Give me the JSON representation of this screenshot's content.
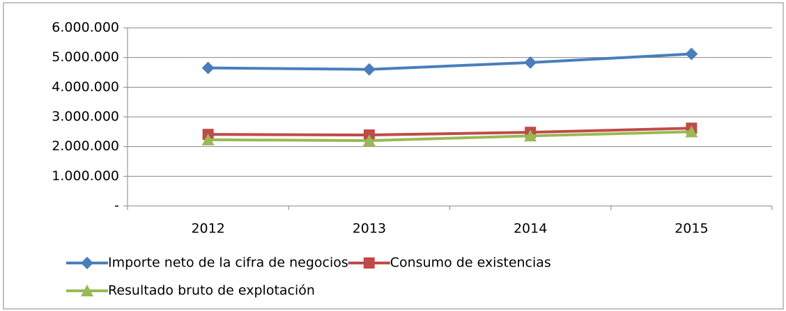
{
  "chart_data": {
    "type": "line",
    "categories": [
      "2012",
      "2013",
      "2014",
      "2015"
    ],
    "series": [
      {
        "name": "Importe neto de la cifra de negocios",
        "color": "#4a7ebb",
        "marker": "diamond",
        "values": [
          4650000,
          4600000,
          4830000,
          5120000
        ]
      },
      {
        "name": "Consumo de existencias",
        "color": "#be4b48",
        "marker": "square",
        "values": [
          2410000,
          2390000,
          2480000,
          2620000
        ]
      },
      {
        "name": "Resultado bruto de explotación",
        "color": "#98b954",
        "marker": "triangle",
        "values": [
          2230000,
          2200000,
          2360000,
          2500000
        ]
      }
    ],
    "ylim": [
      0,
      6000000
    ],
    "yticks": [
      {
        "value": 0,
        "label": "-"
      },
      {
        "value": 1000000,
        "label": "1.000.000"
      },
      {
        "value": 2000000,
        "label": "2.000.000"
      },
      {
        "value": 3000000,
        "label": "3.000.000"
      },
      {
        "value": 4000000,
        "label": "4.000.000"
      },
      {
        "value": 5000000,
        "label": "5.000.000"
      },
      {
        "value": 6000000,
        "label": "6.000.000"
      }
    ],
    "grid": true,
    "legend": "bottom"
  }
}
